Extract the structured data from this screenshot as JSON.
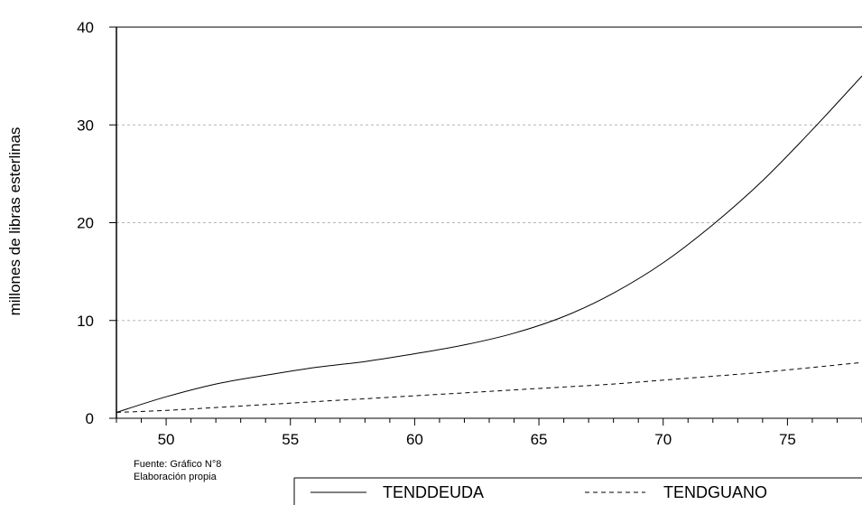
{
  "chart_data": {
    "type": "line",
    "ylabel": "millones de libras esterlinas",
    "xlabel": "",
    "xlim": [
      48,
      78
    ],
    "ylim": [
      0,
      40
    ],
    "x_ticks": [
      50,
      55,
      60,
      65,
      70,
      75
    ],
    "y_ticks": [
      0,
      10,
      20,
      30,
      40
    ],
    "grid": "horizontal dashed",
    "legend_position": "bottom",
    "series": [
      {
        "name": "TENDDEUDA",
        "style": "solid",
        "x": [
          48,
          50,
          52,
          54,
          56,
          58,
          60,
          62,
          64,
          66,
          68,
          70,
          72,
          74,
          76,
          78
        ],
        "y": [
          0.6,
          2.2,
          3.5,
          4.4,
          5.2,
          5.8,
          6.6,
          7.5,
          8.7,
          10.4,
          12.8,
          15.9,
          19.8,
          24.3,
          29.5,
          35.0
        ]
      },
      {
        "name": "TENDGUANO",
        "style": "dashed",
        "x": [
          48,
          50,
          52,
          54,
          56,
          58,
          60,
          62,
          64,
          66,
          68,
          70,
          72,
          74,
          76,
          78
        ],
        "y": [
          0.6,
          0.8,
          1.1,
          1.4,
          1.7,
          2.0,
          2.3,
          2.6,
          2.9,
          3.2,
          3.5,
          3.9,
          4.3,
          4.7,
          5.2,
          5.7
        ]
      }
    ]
  },
  "notes": {
    "line1": "Fuente: Gráfico N°8",
    "line2": "Elaboración propia"
  },
  "legend": {
    "item1": "TENDDEUDA",
    "item2": "TENDGUANO"
  }
}
